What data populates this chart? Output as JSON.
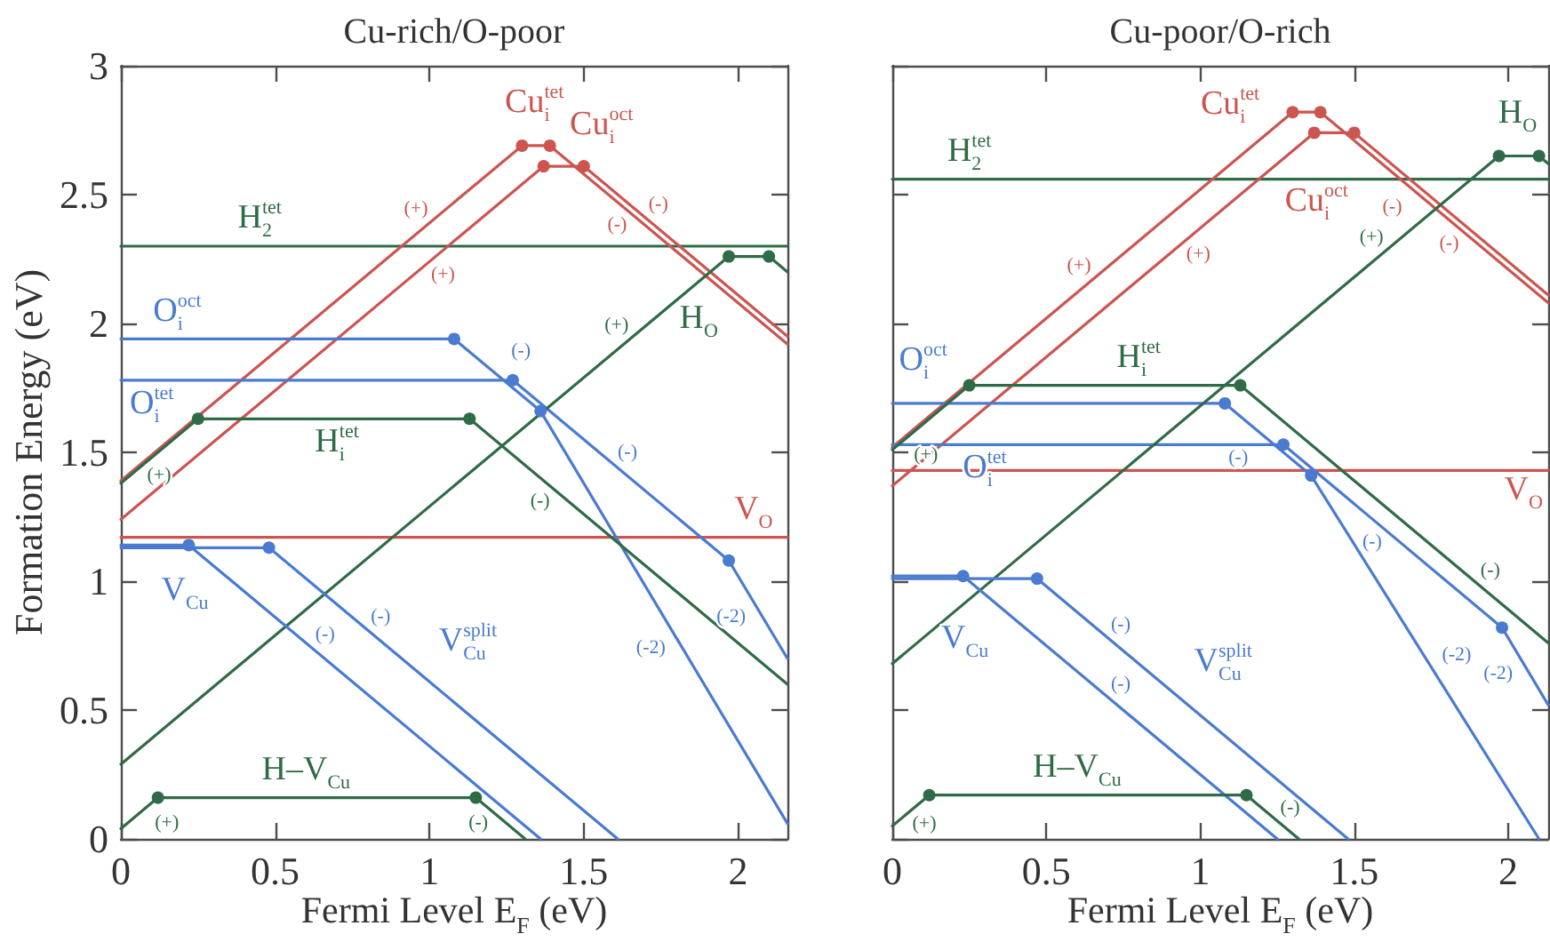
{
  "chart_data": [
    {
      "type": "line",
      "title": "Cu-rich/O-poor",
      "xlabel": "Fermi Level E$_{F}$ (eV)",
      "ylabel": "Formation Energy (eV)",
      "xlim": [
        0,
        2.16
      ],
      "ylim": [
        0,
        3
      ],
      "xticks": [
        0,
        0.5,
        1,
        1.5,
        2
      ],
      "yticks": [
        0,
        0.5,
        1,
        1.5,
        2,
        2.5,
        3
      ],
      "series": [
        {
          "color": "#2f6b46",
          "x": [
            0,
            2.16
          ],
          "values": [
            2.3,
            2.3
          ]
        },
        {
          "color": "#cc5550",
          "x": [
            0,
            2.16
          ],
          "values": [
            1.17,
            1.17
          ]
        },
        {
          "color": "#cc5550",
          "x": [
            0,
            1.3,
            1.39,
            2.16
          ],
          "values": [
            1.39,
            2.69,
            2.69,
            1.92
          ]
        },
        {
          "color": "#cc5550",
          "x": [
            0,
            1.37,
            1.5,
            2.16
          ],
          "values": [
            1.24,
            2.61,
            2.61,
            1.95
          ]
        },
        {
          "color": "#4a7bd0",
          "x": [
            0,
            1.08,
            1.36,
            2.16
          ],
          "values": [
            1.94,
            1.94,
            1.66,
            0.06
          ]
        },
        {
          "color": "#4a7bd0",
          "x": [
            0,
            1.27,
            1.97,
            2.16
          ],
          "values": [
            1.78,
            1.78,
            1.08,
            0.7
          ]
        },
        {
          "color": "#2f6b46",
          "x": [
            0,
            0.25,
            1.13,
            2.16
          ],
          "values": [
            1.38,
            1.63,
            1.63,
            0.6
          ]
        },
        {
          "color": "#2f6b46",
          "x": [
            0,
            1.97,
            2.1,
            2.16
          ],
          "values": [
            0.29,
            2.26,
            2.26,
            2.2
          ]
        },
        {
          "color": "#4a7bd0",
          "x": [
            0,
            0.22,
            1.36
          ],
          "values": [
            1.14,
            1.14,
            0
          ]
        },
        {
          "color": "#4a7bd0",
          "x": [
            0,
            0.48,
            1.61
          ],
          "values": [
            1.13,
            1.13,
            0
          ]
        },
        {
          "color": "#2f6b46",
          "x": [
            0,
            0.12,
            1.15,
            1.31
          ],
          "values": [
            0.04,
            0.16,
            0.16,
            0
          ]
        },
        {
          "type": "scatter",
          "marker": "circle",
          "color": "#cc5550",
          "x": [
            1.3,
            1.39,
            1.37,
            1.5
          ],
          "values": [
            2.69,
            2.69,
            2.61,
            2.61
          ]
        },
        {
          "type": "scatter",
          "marker": "circle",
          "color": "#4a7bd0",
          "x": [
            1.08,
            1.36,
            1.27,
            1.97,
            0.22,
            0.48
          ],
          "values": [
            1.94,
            1.66,
            1.78,
            1.08,
            1.14,
            1.13
          ]
        },
        {
          "type": "scatter",
          "marker": "circle",
          "color": "#2f6b46",
          "x": [
            0.25,
            1.13,
            1.97,
            2.1,
            0.12,
            1.15
          ],
          "values": [
            1.63,
            1.63,
            2.26,
            2.26,
            0.16,
            0.16
          ]
        }
      ],
      "annotations": [
        {
          "text": "H$_{2}$$^{tet}$",
          "x": 0.45,
          "y": 2.3
        },
        {
          "text": "Cu$_{i}$$^{tet}$",
          "x": 1.34,
          "y": 2.69
        },
        {
          "text": "Cu$_{i}$$^{oct}$",
          "x": 1.43,
          "y": 2.61
        },
        {
          "text": "O$_{i}$$^{oct}$",
          "x": 0.1,
          "y": 1.94
        },
        {
          "text": "O$_{i}$$^{tet}$",
          "x": 0.1,
          "y": 1.78
        },
        {
          "text": "H$_{i}$$^{tet}$",
          "x": 0.7,
          "y": 1.63
        },
        {
          "text": "H$_{O}$",
          "x": 1.8,
          "y": 2.09
        },
        {
          "text": "V$_{O}$",
          "x": 2.05,
          "y": 1.17
        },
        {
          "text": "V$_{Cu}$",
          "x": 0.3,
          "y": 1.06
        },
        {
          "text": "V$_{Cu}$$^{split}$",
          "x": 1.0,
          "y": 0.61
        },
        {
          "text": "H–V$_{Cu}$",
          "x": 0.6,
          "y": 0.16
        },
        {
          "text": "(+)",
          "x": 1.0,
          "y": 2.39
        },
        {
          "text": "(+)",
          "x": 1.0,
          "y": 2.24
        },
        {
          "text": "(-)",
          "x": 1.7,
          "y": 2.41
        },
        {
          "text": "(-)",
          "x": 1.65,
          "y": 2.43
        },
        {
          "text": "(+)",
          "x": 1.65,
          "y": 1.94
        },
        {
          "text": "(-)",
          "x": 1.22,
          "y": 1.8
        },
        {
          "text": "(-)",
          "x": 1.6,
          "y": 1.45
        },
        {
          "text": "(-2)",
          "x": 2.06,
          "y": 0.9
        },
        {
          "text": "(-2)",
          "x": 1.8,
          "y": 0.78
        },
        {
          "text": "(+)",
          "x": 0.08,
          "y": 1.46
        },
        {
          "text": "(-)",
          "x": 1.4,
          "y": 1.36
        },
        {
          "text": "(-)",
          "x": 0.62,
          "y": 0.74
        },
        {
          "text": "(-)",
          "x": 0.8,
          "y": 0.81
        },
        {
          "text": "(+)",
          "x": 0.09,
          "y": 0.13
        },
        {
          "text": "(-)",
          "x": 1.2,
          "y": 0.11
        }
      ]
    },
    {
      "type": "line",
      "title": "Cu-poor/O-rich",
      "xlabel": "Fermi Level E$_{F}$ (eV)",
      "xlim": [
        0,
        2.13
      ],
      "ylim": [
        0,
        3
      ],
      "xticks": [
        0,
        0.5,
        1,
        1.5,
        2
      ],
      "yticks": [
        0,
        0.5,
        1,
        1.5,
        2,
        2.5,
        3
      ],
      "tick_labels": "x",
      "series": [
        {
          "color": "#2f6b46",
          "x": [
            0,
            2.13
          ],
          "values": [
            2.56,
            2.56
          ]
        },
        {
          "color": "#cc5550",
          "x": [
            0,
            2.13
          ],
          "values": [
            1.43,
            1.43
          ]
        },
        {
          "color": "#cc5550",
          "x": [
            0,
            1.3,
            1.39,
            2.13
          ],
          "values": [
            1.52,
            2.82,
            2.82,
            2.08
          ]
        },
        {
          "color": "#cc5550",
          "x": [
            0,
            1.37,
            1.5,
            2.13
          ],
          "values": [
            1.37,
            2.74,
            2.74,
            2.11
          ]
        },
        {
          "color": "#4a7bd0",
          "x": [
            0,
            1.08,
            1.36,
            2.1
          ],
          "values": [
            1.69,
            1.69,
            1.41,
            0
          ]
        },
        {
          "color": "#4a7bd0",
          "x": [
            0,
            1.27,
            1.98,
            2.13
          ],
          "values": [
            1.53,
            1.53,
            0.82,
            0.52
          ]
        },
        {
          "color": "#2f6b46",
          "x": [
            0,
            0.25,
            1.13,
            2.13
          ],
          "values": [
            1.51,
            1.76,
            1.76,
            0.76
          ]
        },
        {
          "color": "#2f6b46",
          "x": [
            0,
            1.97,
            2.1,
            2.13
          ],
          "values": [
            0.68,
            2.65,
            2.65,
            2.62
          ]
        },
        {
          "color": "#4a7bd0",
          "x": [
            0,
            0.23,
            1.25
          ],
          "values": [
            1.02,
            1.02,
            0
          ]
        },
        {
          "color": "#4a7bd0",
          "x": [
            0,
            0.47,
            1.48
          ],
          "values": [
            1.01,
            1.01,
            0
          ]
        },
        {
          "color": "#2f6b46",
          "x": [
            0,
            0.12,
            1.15,
            1.32
          ],
          "values": [
            0.05,
            0.17,
            0.17,
            0
          ]
        },
        {
          "type": "scatter",
          "marker": "circle",
          "color": "#cc5550",
          "x": [
            1.3,
            1.39,
            1.37,
            1.5
          ],
          "values": [
            2.82,
            2.82,
            2.74,
            2.74
          ]
        },
        {
          "type": "scatter",
          "marker": "circle",
          "color": "#4a7bd0",
          "x": [
            1.08,
            1.36,
            1.27,
            1.98,
            0.23,
            0.47
          ],
          "values": [
            1.69,
            1.41,
            1.53,
            0.82,
            1.02,
            1.01
          ]
        },
        {
          "type": "scatter",
          "marker": "circle",
          "color": "#2f6b46",
          "x": [
            0.25,
            1.13,
            1.97,
            2.1,
            0.12,
            1.15
          ],
          "values": [
            1.76,
            1.76,
            2.65,
            2.65,
            0.17,
            0.17
          ]
        }
      ],
      "annotations": [
        {
          "text": "H$_{2}$$^{tet}$",
          "x": 0.25,
          "y": 2.56
        },
        {
          "text": "Cu$_{i}$$^{tet}$",
          "x": 1.2,
          "y": 2.72
        },
        {
          "text": "Cu$_{i}$$^{oct}$",
          "x": 1.25,
          "y": 2.62
        },
        {
          "text": "H$_{O}$",
          "x": 2.03,
          "y": 2.65
        },
        {
          "text": "O$_{i}$$^{oct}$",
          "x": 0.1,
          "y": 1.69
        },
        {
          "text": "O$_{i}$$^{tet}$",
          "x": 0.3,
          "y": 1.53
        },
        {
          "text": "H$_{i}$$^{tet}$",
          "x": 0.8,
          "y": 1.76
        },
        {
          "text": "V$_{O}$",
          "x": 2.05,
          "y": 1.43
        },
        {
          "text": "V$_{Cu}$",
          "x": 0.35,
          "y": 0.9
        },
        {
          "text": "V$_{Cu}$$^{split}$",
          "x": 0.95,
          "y": 0.53
        },
        {
          "text": "H–V$_{Cu}$",
          "x": 0.6,
          "y": 0.17
        },
        {
          "text": "(+)",
          "x": 0.65,
          "y": 2.17
        },
        {
          "text": "(+)",
          "x": 0.95,
          "y": 2.32
        },
        {
          "text": "(-)",
          "x": 1.7,
          "y": 2.54
        },
        {
          "text": "(-)",
          "x": 1.85,
          "y": 2.36
        },
        {
          "text": "(+)",
          "x": 1.6,
          "y": 2.28
        },
        {
          "text": "(+)",
          "x": 0.05,
          "y": 1.56
        },
        {
          "text": "(-)",
          "x": 1.2,
          "y": 1.57
        },
        {
          "text": "(-)",
          "x": 1.6,
          "y": 1.2
        },
        {
          "text": "(-)",
          "x": 1.9,
          "y": 0.99
        },
        {
          "text": "(-2)",
          "x": 1.75,
          "y": 0.67
        },
        {
          "text": "(-2)",
          "x": 2.05,
          "y": 0.68
        },
        {
          "text": "(-)",
          "x": 0.7,
          "y": 0.78
        },
        {
          "text": "(-)",
          "x": 0.7,
          "y": 0.55
        },
        {
          "text": "(+)",
          "x": 0.06,
          "y": 0.11
        },
        {
          "text": "(-)",
          "x": 1.25,
          "y": 0.07
        }
      ]
    }
  ]
}
